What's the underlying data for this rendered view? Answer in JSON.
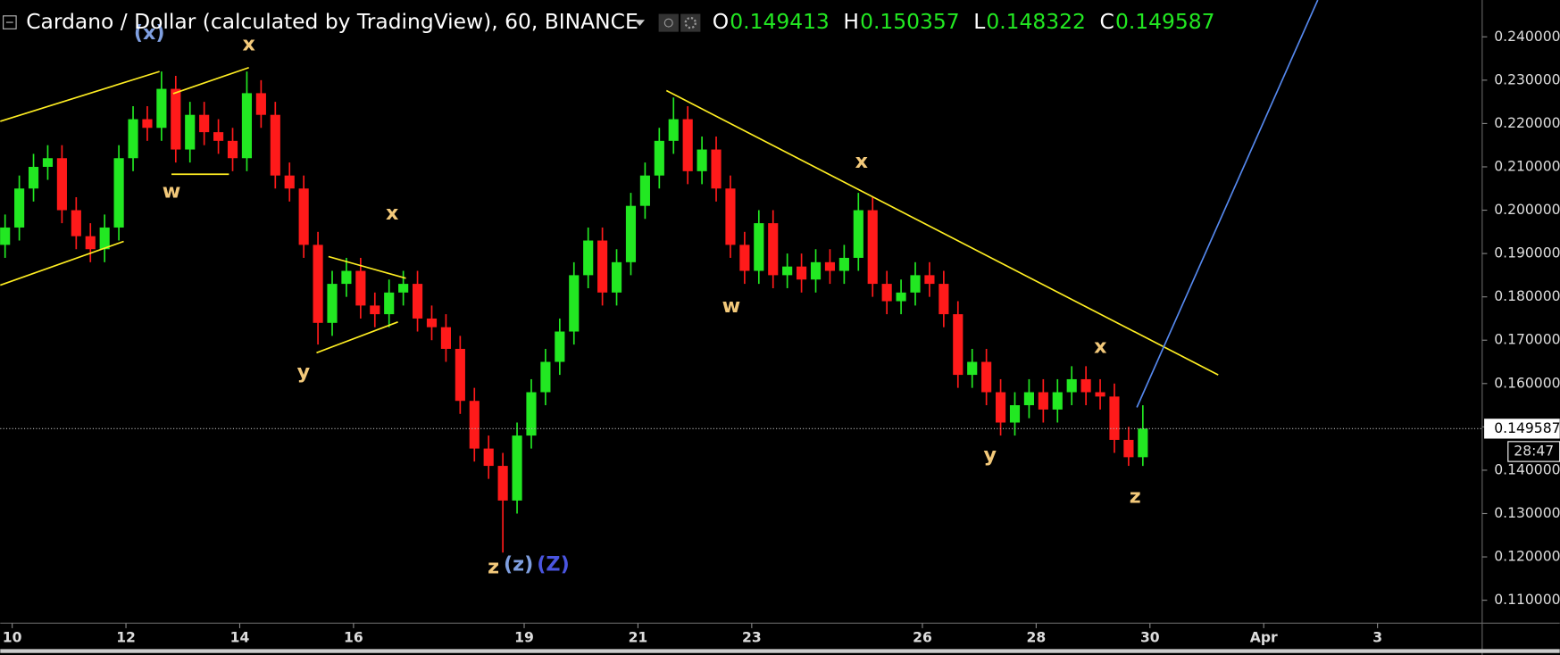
{
  "chart_data": {
    "type": "candlestick",
    "title": "Cardano / Dollar (calculated by TradingView), 60, BINANCE",
    "ohlc_header": [
      {
        "label": "O",
        "value": "0.149413"
      },
      {
        "label": "H",
        "value": "0.150357"
      },
      {
        "label": "L",
        "value": "0.148322"
      },
      {
        "label": "C",
        "value": "0.149587"
      }
    ],
    "up_color": "#22e822",
    "down_color": "#ff1a1a",
    "x": [
      9.875,
      10.125,
      10.375,
      10.625,
      10.875,
      11.125,
      11.375,
      11.625,
      11.875,
      12.125,
      12.375,
      12.625,
      12.875,
      13.125,
      13.375,
      13.625,
      13.875,
      14.125,
      14.375,
      14.625,
      14.875,
      15.125,
      15.375,
      15.625,
      15.875,
      16.125,
      16.375,
      16.625,
      16.875,
      17.125,
      17.375,
      17.625,
      17.875,
      18.125,
      18.375,
      18.625,
      18.875,
      19.125,
      19.375,
      19.625,
      19.875,
      20.125,
      20.375,
      20.625,
      20.875,
      21.125,
      21.375,
      21.625,
      21.875,
      22.125,
      22.375,
      22.625,
      22.875,
      23.125,
      23.375,
      23.625,
      23.875,
      24.125,
      24.375,
      24.625,
      24.875,
      25.125,
      25.375,
      25.625,
      25.875,
      26.125,
      26.375,
      26.625,
      26.875,
      27.125,
      27.375,
      27.625,
      27.875,
      28.125,
      28.375,
      28.625,
      28.875,
      29.125,
      29.375,
      29.625,
      29.875
    ],
    "open": [
      0.192,
      0.196,
      0.205,
      0.21,
      0.212,
      0.2,
      0.194,
      0.191,
      0.196,
      0.212,
      0.221,
      0.219,
      0.228,
      0.214,
      0.222,
      0.218,
      0.216,
      0.212,
      0.227,
      0.222,
      0.208,
      0.205,
      0.192,
      0.174,
      0.183,
      0.186,
      0.178,
      0.176,
      0.181,
      0.183,
      0.175,
      0.173,
      0.168,
      0.156,
      0.145,
      0.141,
      0.133,
      0.148,
      0.158,
      0.165,
      0.172,
      0.185,
      0.193,
      0.181,
      0.188,
      0.201,
      0.208,
      0.216,
      0.221,
      0.209,
      0.214,
      0.205,
      0.192,
      0.186,
      0.197,
      0.185,
      0.187,
      0.184,
      0.188,
      0.186,
      0.189,
      0.2,
      0.183,
      0.179,
      0.181,
      0.185,
      0.183,
      0.176,
      0.162,
      0.165,
      0.158,
      0.151,
      0.155,
      0.158,
      0.154,
      0.158,
      0.161,
      0.158,
      0.157,
      0.147,
      0.143
    ],
    "high": [
      0.199,
      0.208,
      0.213,
      0.215,
      0.215,
      0.203,
      0.197,
      0.199,
      0.215,
      0.224,
      0.224,
      0.232,
      0.231,
      0.225,
      0.225,
      0.221,
      0.219,
      0.232,
      0.23,
      0.225,
      0.211,
      0.208,
      0.195,
      0.186,
      0.189,
      0.189,
      0.181,
      0.184,
      0.186,
      0.186,
      0.178,
      0.176,
      0.171,
      0.159,
      0.148,
      0.144,
      0.151,
      0.161,
      0.168,
      0.175,
      0.188,
      0.196,
      0.196,
      0.191,
      0.204,
      0.211,
      0.219,
      0.226,
      0.224,
      0.217,
      0.217,
      0.208,
      0.195,
      0.2,
      0.2,
      0.19,
      0.19,
      0.191,
      0.191,
      0.192,
      0.204,
      0.203,
      0.186,
      0.184,
      0.188,
      0.188,
      0.186,
      0.179,
      0.168,
      0.168,
      0.161,
      0.158,
      0.161,
      0.161,
      0.161,
      0.164,
      0.164,
      0.161,
      0.16,
      0.15,
      0.155
    ],
    "low": [
      0.189,
      0.193,
      0.202,
      0.207,
      0.197,
      0.191,
      0.188,
      0.188,
      0.193,
      0.209,
      0.216,
      0.216,
      0.211,
      0.211,
      0.215,
      0.213,
      0.209,
      0.209,
      0.219,
      0.205,
      0.202,
      0.189,
      0.169,
      0.171,
      0.18,
      0.175,
      0.173,
      0.173,
      0.178,
      0.172,
      0.17,
      0.165,
      0.153,
      0.142,
      0.138,
      0.121,
      0.13,
      0.145,
      0.155,
      0.162,
      0.169,
      0.182,
      0.178,
      0.178,
      0.185,
      0.198,
      0.205,
      0.213,
      0.206,
      0.206,
      0.202,
      0.189,
      0.183,
      0.183,
      0.182,
      0.182,
      0.181,
      0.181,
      0.183,
      0.183,
      0.186,
      0.18,
      0.176,
      0.176,
      0.178,
      0.18,
      0.173,
      0.159,
      0.159,
      0.155,
      0.148,
      0.148,
      0.152,
      0.151,
      0.151,
      0.155,
      0.155,
      0.154,
      0.144,
      0.141,
      0.141
    ],
    "close": [
      0.196,
      0.205,
      0.21,
      0.212,
      0.2,
      0.194,
      0.191,
      0.196,
      0.212,
      0.221,
      0.219,
      0.228,
      0.214,
      0.222,
      0.218,
      0.216,
      0.212,
      0.227,
      0.222,
      0.208,
      0.205,
      0.192,
      0.174,
      0.183,
      0.186,
      0.178,
      0.176,
      0.181,
      0.183,
      0.175,
      0.173,
      0.168,
      0.156,
      0.145,
      0.141,
      0.133,
      0.148,
      0.158,
      0.165,
      0.172,
      0.185,
      0.193,
      0.181,
      0.188,
      0.201,
      0.208,
      0.216,
      0.221,
      0.209,
      0.214,
      0.205,
      0.192,
      0.186,
      0.197,
      0.185,
      0.187,
      0.184,
      0.188,
      0.186,
      0.189,
      0.2,
      0.183,
      0.179,
      0.181,
      0.185,
      0.183,
      0.176,
      0.162,
      0.165,
      0.158,
      0.151,
      0.155,
      0.158,
      0.154,
      0.158,
      0.161,
      0.158,
      0.157,
      0.147,
      0.143,
      0.1496
    ],
    "xlim": [
      9.79,
      35.84
    ],
    "xticks": [
      10,
      12,
      14,
      16,
      19,
      21,
      23,
      26,
      28,
      30,
      {
        "value": 32,
        "label": "Apr"
      },
      {
        "value": 34,
        "label": "3"
      }
    ],
    "ylim": [
      0.1047,
      0.2485
    ],
    "yticks": [
      {
        "value": 0.11,
        "label": "0.110000"
      },
      {
        "value": 0.12,
        "label": "0.120000"
      },
      {
        "value": 0.13,
        "label": "0.130000"
      },
      {
        "value": 0.14,
        "label": "0.140000"
      },
      {
        "value": 0.15,
        "label": "0.150000"
      },
      {
        "value": 0.16,
        "label": "0.160000"
      },
      {
        "value": 0.17,
        "label": "0.170000"
      },
      {
        "value": 0.18,
        "label": "0.180000"
      },
      {
        "value": 0.19,
        "label": "0.190000"
      },
      {
        "value": 0.2,
        "label": "0.200000"
      },
      {
        "value": 0.21,
        "label": "0.210000"
      },
      {
        "value": 0.22,
        "label": "0.220000"
      },
      {
        "value": 0.23,
        "label": "0.230000"
      },
      {
        "value": 0.24,
        "label": "0.240000"
      }
    ],
    "last_price": 0.149587,
    "countdown": "28:47",
    "trendlines": [
      {
        "color": "#ffee22",
        "x": [
          9.79,
          12.59
        ],
        "y": [
          0.2205,
          0.232
        ]
      },
      {
        "color": "#ffee22",
        "x": [
          9.79,
          11.96
        ],
        "y": [
          0.1827,
          0.1928
        ]
      },
      {
        "color": "#ffee22",
        "x": [
          12.83,
          14.16
        ],
        "y": [
          0.2269,
          0.2329
        ]
      },
      {
        "color": "#ffee22",
        "x": [
          12.8,
          13.81
        ],
        "y": [
          0.2083,
          0.2083
        ]
      },
      {
        "color": "#ffee22",
        "x": [
          15.56,
          16.92
        ],
        "y": [
          0.1893,
          0.1843
        ]
      },
      {
        "color": "#ffee22",
        "x": [
          15.35,
          16.78
        ],
        "y": [
          0.1671,
          0.1742
        ]
      },
      {
        "color": "#ffee22",
        "x": [
          21.5,
          31.2
        ],
        "y": [
          0.2276,
          0.162
        ]
      },
      {
        "color": "#5588ee",
        "x": [
          29.77,
          32.95
        ],
        "y": [
          0.1545,
          0.2485
        ]
      }
    ],
    "annotations": [
      {
        "text": "(x)",
        "x": 12.41,
        "y": 0.2408,
        "color": "#7f9fe0"
      },
      {
        "text": "x",
        "x": 14.16,
        "y": 0.2382,
        "color": "#f3c97a"
      },
      {
        "text": "w",
        "x": 12.8,
        "y": 0.2042,
        "color": "#f3c97a"
      },
      {
        "text": "x",
        "x": 16.68,
        "y": 0.1992,
        "color": "#f3c97a"
      },
      {
        "text": "y",
        "x": 15.12,
        "y": 0.1625,
        "color": "#f3c97a"
      },
      {
        "text": "z",
        "x": 18.46,
        "y": 0.1175,
        "color": "#f3c97a"
      },
      {
        "text": "(z)",
        "x": 18.9,
        "y": 0.1182,
        "color": "#7f9fe0"
      },
      {
        "text": "(Z)",
        "x": 19.51,
        "y": 0.1182,
        "color": "#4a55e0"
      },
      {
        "text": "x",
        "x": 24.93,
        "y": 0.2111,
        "color": "#f3c97a"
      },
      {
        "text": "w",
        "x": 22.64,
        "y": 0.1778,
        "color": "#f3c97a"
      },
      {
        "text": "y",
        "x": 27.19,
        "y": 0.1434,
        "color": "#f3c97a"
      },
      {
        "text": "x",
        "x": 29.13,
        "y": 0.1684,
        "color": "#f3c97a"
      },
      {
        "text": "z",
        "x": 29.74,
        "y": 0.1338,
        "color": "#f3c97a"
      }
    ]
  }
}
